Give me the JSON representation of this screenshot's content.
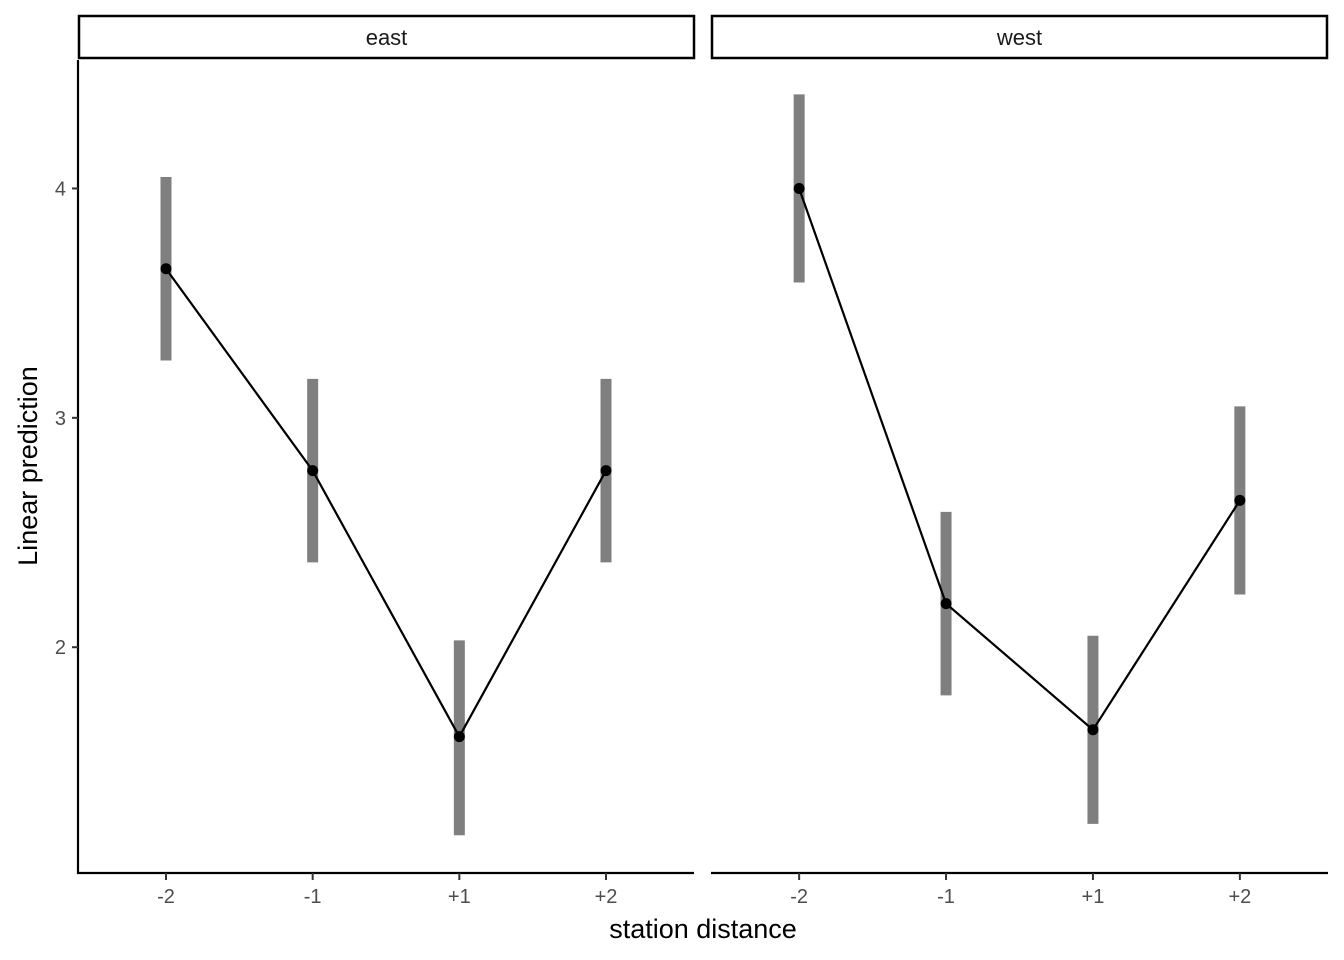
{
  "chart_data": {
    "type": "line",
    "xlabel": "station distance",
    "ylabel": "Linear prediction",
    "ylim": [
      1.02,
      4.56
    ],
    "yticks": [
      "2",
      "3",
      "4"
    ],
    "categories": [
      "-2",
      "-1",
      "+1",
      "+2"
    ],
    "grid": false,
    "legend": "none",
    "colors": {
      "line": "#000000",
      "point": "#000000",
      "errorbar": "#7f7f7f"
    },
    "panels": [
      {
        "label": "east",
        "values": [
          3.65,
          2.77,
          1.61,
          2.77
        ],
        "lower": [
          3.25,
          2.37,
          1.18,
          2.37
        ],
        "upper": [
          4.05,
          3.17,
          2.03,
          3.17
        ]
      },
      {
        "label": "west",
        "values": [
          4.0,
          2.19,
          1.64,
          2.64
        ],
        "lower": [
          3.59,
          1.79,
          1.23,
          2.23
        ],
        "upper": [
          4.41,
          2.59,
          2.05,
          3.05
        ]
      }
    ]
  }
}
